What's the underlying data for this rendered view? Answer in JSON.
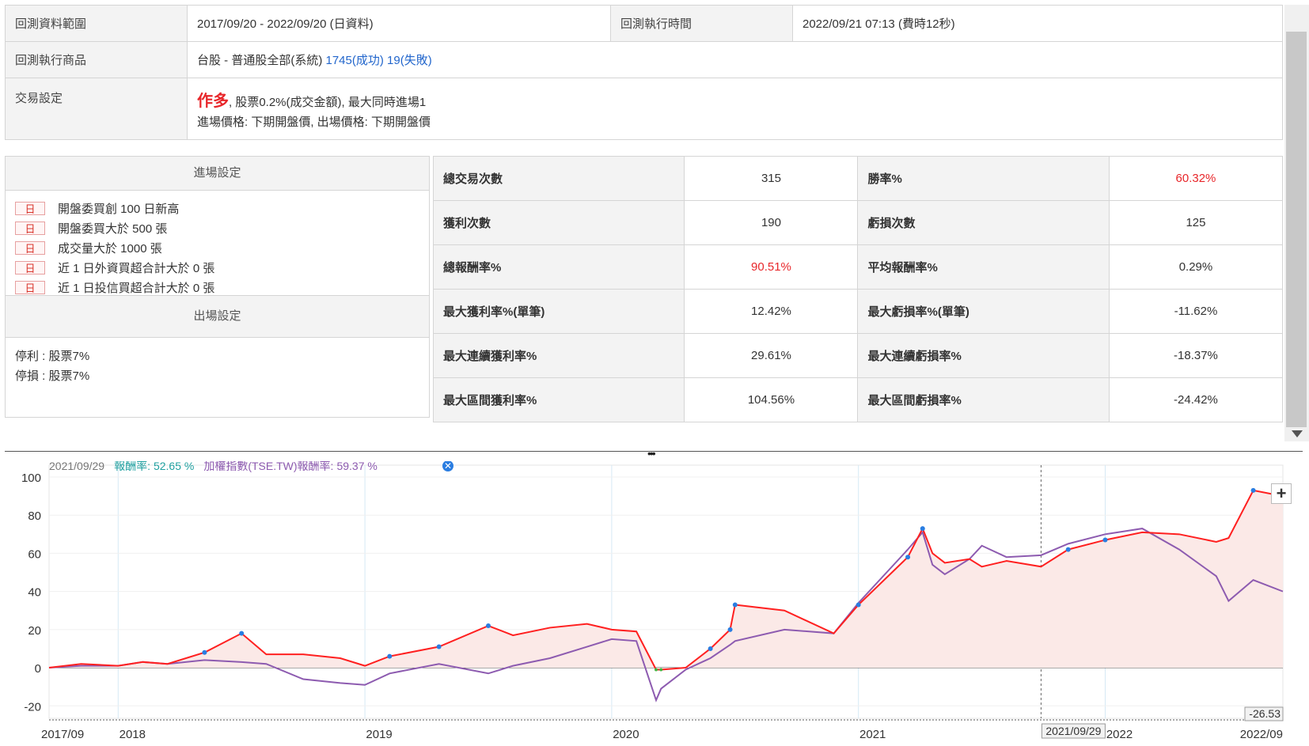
{
  "info": {
    "range_label": "回測資料範圍",
    "range_value": "2017/09/20 - 2022/09/20 (日資料)",
    "exec_time_label": "回測執行時間",
    "exec_time_value": "2022/09/21 07:13 (費時12秒)",
    "product_label": "回測執行商品",
    "product_name": "台股 - 普通股全部(系統)",
    "product_success": "1745(成功)",
    "product_fail": "19(失敗)",
    "trade_label": "交易設定",
    "trade_direction": "作多",
    "trade_detail": ", 股票0.2%(成交金額), 最大同時進場1",
    "trade_price": "進場價格: 下期開盤價, 出場價格: 下期開盤價"
  },
  "entry": {
    "title": "進場設定",
    "day_tag": "日",
    "conditions": [
      "開盤委買創 100 日新高",
      "開盤委買大於 500 張",
      "成交量大於 1000 張",
      "近 1 日外資買超合計大於 0 張",
      "近 1 日投信買超合計大於 0 張"
    ],
    "exit_title": "出場設定",
    "exit_rules": [
      "停利 : 股票7%",
      "停損 : 股票7%"
    ]
  },
  "stats": [
    {
      "k1": "總交易次數",
      "v1": "315",
      "k2": "勝率%",
      "v2": "60.32%",
      "r1": false,
      "r2": true
    },
    {
      "k1": "獲利次數",
      "v1": "190",
      "k2": "虧損次數",
      "v2": "125",
      "r1": false,
      "r2": false
    },
    {
      "k1": "總報酬率%",
      "v1": "90.51%",
      "k2": "平均報酬率%",
      "v2": "0.29%",
      "r1": true,
      "r2": false
    },
    {
      "k1": "最大獲利率%(單筆)",
      "v1": "12.42%",
      "k2": "最大虧損率%(單筆)",
      "v2": "-11.62%",
      "r1": false,
      "r2": false
    },
    {
      "k1": "最大連續獲利率%",
      "v1": "29.61%",
      "k2": "最大連續虧損率%",
      "v2": "-18.37%",
      "r1": false,
      "r2": false
    },
    {
      "k1": "最大區間獲利率%",
      "v1": "104.56%",
      "k2": "最大區間虧損率%",
      "v2": "-24.42%",
      "r1": false,
      "r2": false
    }
  ],
  "icons": {
    "scroll_down": "triangle-down-icon",
    "grip": "drag-handle-icon",
    "zoom": "plus-icon",
    "info": "info-circle-icon"
  },
  "colors": {
    "strategy": "#ff2020",
    "index": "#8d5bb0",
    "entry_dot": "#2a7de1",
    "below_zero": "#3fb53f",
    "fill": "#fbe9e7",
    "accent_red": "#e8262a",
    "link_blue": "#2266cc"
  },
  "chart_data": {
    "type": "line",
    "tooltip": {
      "date": "2021/09/29",
      "s1_label": "報酬率:",
      "s1_value": "52.65 %",
      "s2_label": "加權指數(TSE.TW)報酬率:",
      "s2_value": "59.37 %"
    },
    "ylim": [
      -26.53,
      100
    ],
    "y_ticks": [
      "100",
      "80",
      "60",
      "40",
      "20",
      "0",
      "-20"
    ],
    "y_min_label": "-26.53",
    "x_ticks": [
      "2017/09",
      "2018",
      "2019",
      "2020",
      "2021",
      "2022",
      "2022/09"
    ],
    "x_tick_dates": [
      2017.72,
      2018.0,
      2019.0,
      2020.0,
      2021.0,
      2022.0,
      2022.72
    ],
    "crosshair_date": 2021.74,
    "crosshair_label": "2021/09/29",
    "series": [
      {
        "name": "報酬率",
        "x": [
          2017.72,
          2017.85,
          2018.0,
          2018.1,
          2018.2,
          2018.35,
          2018.5,
          2018.6,
          2018.75,
          2018.9,
          2019.0,
          2019.1,
          2019.3,
          2019.5,
          2019.6,
          2019.75,
          2019.9,
          2020.0,
          2020.1,
          2020.18,
          2020.2,
          2020.3,
          2020.4,
          2020.48,
          2020.5,
          2020.7,
          2020.9,
          2021.0,
          2021.2,
          2021.26,
          2021.3,
          2021.35,
          2021.45,
          2021.5,
          2021.6,
          2021.74,
          2021.85,
          2022.0,
          2022.15,
          2022.3,
          2022.45,
          2022.5,
          2022.6,
          2022.72
        ],
        "y": [
          0,
          2,
          1,
          3,
          2,
          8,
          18,
          7,
          7,
          5,
          1,
          6,
          11,
          22,
          17,
          21,
          23,
          20,
          19,
          -1,
          -1,
          0,
          10,
          20,
          33,
          30,
          18,
          33,
          58,
          73,
          60,
          55,
          57,
          53,
          56,
          53,
          62,
          67,
          71,
          70,
          66,
          68,
          93,
          90
        ]
      },
      {
        "name": "加權指數(TSE.TW)報酬率",
        "x": [
          2017.72,
          2017.85,
          2018.0,
          2018.1,
          2018.2,
          2018.35,
          2018.5,
          2018.6,
          2018.75,
          2018.9,
          2019.0,
          2019.1,
          2019.3,
          2019.5,
          2019.6,
          2019.75,
          2019.9,
          2020.0,
          2020.1,
          2020.18,
          2020.2,
          2020.3,
          2020.4,
          2020.48,
          2020.5,
          2020.7,
          2020.9,
          2021.0,
          2021.2,
          2021.26,
          2021.3,
          2021.35,
          2021.45,
          2021.5,
          2021.6,
          2021.74,
          2021.85,
          2022.0,
          2022.15,
          2022.3,
          2022.45,
          2022.5,
          2022.6,
          2022.72
        ],
        "y": [
          0,
          1,
          1,
          3,
          2,
          4,
          3,
          2,
          -6,
          -8,
          -9,
          -3,
          2,
          -3,
          1,
          5,
          11,
          15,
          14,
          -17,
          -11,
          -1,
          5,
          12,
          14,
          20,
          18,
          34,
          62,
          71,
          54,
          49,
          57,
          64,
          58,
          59,
          65,
          70,
          73,
          62,
          48,
          35,
          46,
          40
        ]
      }
    ]
  }
}
